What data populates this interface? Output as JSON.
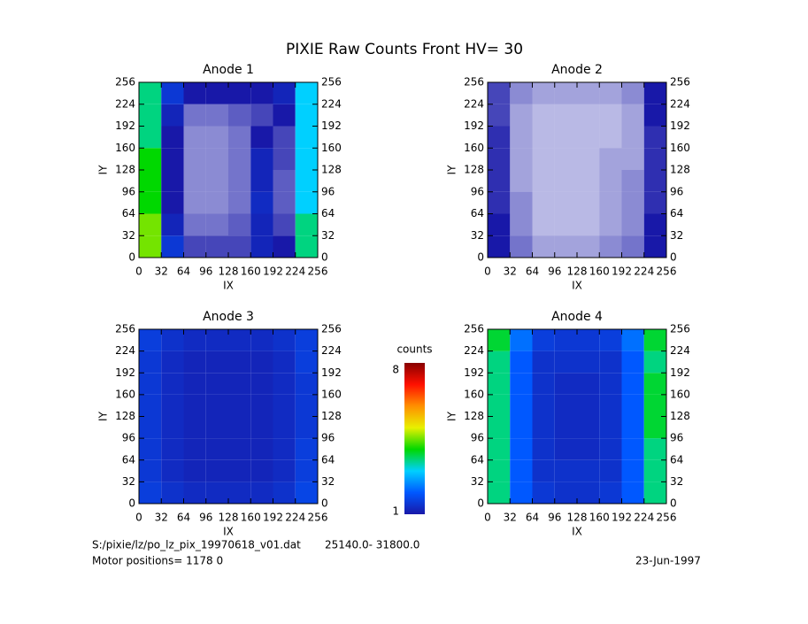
{
  "title": "PIXIE Raw Counts Front HV= 30",
  "footer": {
    "file": "S:/pixie/lz/po_lz_pix_19970618_v01.dat",
    "range": "25140.0- 31800.0",
    "motor": "Motor positions= 1178 0",
    "date": "23-Jun-1997"
  },
  "colorbar": {
    "label": "counts",
    "zlim": [
      1,
      8
    ],
    "ticks": [
      1,
      8
    ],
    "colorscale": [
      "#1818a8",
      "#0058ff",
      "#00d0ff",
      "#00d800",
      "#e8f000",
      "#ff9000",
      "#ff1000",
      "#880000"
    ]
  },
  "chart_data": [
    {
      "type": "heatmap",
      "title": "Anode 1",
      "xlabel": "IX",
      "ylabel": "IY",
      "xlim": [
        0,
        256
      ],
      "ylim": [
        0,
        256
      ],
      "xticks": [
        0,
        32,
        64,
        96,
        128,
        160,
        192,
        224,
        256
      ],
      "yticks": [
        0,
        32,
        64,
        96,
        128,
        160,
        192,
        224,
        256
      ],
      "z": [
        [
          4.5,
          1.5,
          0.8,
          0.8,
          0.8,
          1.2,
          1.0,
          3.5
        ],
        [
          4.5,
          1.2,
          0.6,
          0.6,
          0.7,
          1.2,
          0.8,
          3.5
        ],
        [
          4.0,
          1.0,
          0.5,
          0.5,
          0.6,
          1.3,
          0.7,
          3.0
        ],
        [
          4.0,
          1.0,
          0.5,
          0.5,
          0.6,
          1.2,
          0.7,
          3.0
        ],
        [
          4.0,
          1.0,
          0.5,
          0.5,
          0.6,
          1.2,
          0.8,
          3.0
        ],
        [
          3.5,
          1.0,
          0.5,
          0.5,
          0.6,
          1.0,
          0.8,
          3.0
        ],
        [
          3.5,
          1.2,
          0.6,
          0.6,
          0.7,
          0.8,
          1.0,
          3.0
        ],
        [
          3.5,
          1.5,
          1.0,
          1.0,
          1.0,
          1.0,
          1.2,
          3.0
        ]
      ]
    },
    {
      "type": "heatmap",
      "title": "Anode 2",
      "xlabel": "IX",
      "ylabel": "IY",
      "xlim": [
        0,
        256
      ],
      "ylim": [
        0,
        256
      ],
      "xticks": [
        0,
        32,
        64,
        96,
        128,
        160,
        192,
        224,
        256
      ],
      "yticks": [
        0,
        32,
        64,
        96,
        128,
        160,
        192,
        224,
        256
      ],
      "z": [
        [
          1.0,
          0.6,
          0.4,
          0.4,
          0.4,
          0.5,
          0.6,
          1.0
        ],
        [
          1.0,
          0.5,
          0.3,
          0.3,
          0.3,
          0.4,
          0.5,
          1.0
        ],
        [
          0.9,
          0.5,
          0.3,
          0.3,
          0.3,
          0.4,
          0.5,
          0.9
        ],
        [
          0.9,
          0.4,
          0.3,
          0.3,
          0.3,
          0.4,
          0.5,
          0.9
        ],
        [
          0.9,
          0.4,
          0.3,
          0.3,
          0.3,
          0.4,
          0.4,
          0.9
        ],
        [
          0.9,
          0.4,
          0.3,
          0.3,
          0.3,
          0.3,
          0.4,
          0.9
        ],
        [
          0.8,
          0.4,
          0.3,
          0.3,
          0.3,
          0.3,
          0.4,
          1.0
        ],
        [
          0.8,
          0.5,
          0.4,
          0.4,
          0.4,
          0.4,
          0.5,
          1.0
        ]
      ]
    },
    {
      "type": "heatmap",
      "title": "Anode 3",
      "xlabel": "IX",
      "ylabel": "IY",
      "xlim": [
        0,
        256
      ],
      "ylim": [
        0,
        256
      ],
      "xticks": [
        0,
        32,
        64,
        96,
        128,
        160,
        192,
        224,
        256
      ],
      "yticks": [
        0,
        32,
        64,
        96,
        128,
        160,
        192,
        224,
        256
      ],
      "z": [
        [
          1.6,
          1.4,
          1.3,
          1.3,
          1.3,
          1.3,
          1.4,
          1.7
        ],
        [
          1.5,
          1.3,
          1.2,
          1.2,
          1.2,
          1.2,
          1.3,
          1.6
        ],
        [
          1.5,
          1.3,
          1.2,
          1.2,
          1.2,
          1.2,
          1.3,
          1.6
        ],
        [
          1.5,
          1.3,
          1.2,
          1.2,
          1.2,
          1.2,
          1.3,
          1.5
        ],
        [
          1.5,
          1.3,
          1.2,
          1.2,
          1.2,
          1.2,
          1.3,
          1.5
        ],
        [
          1.5,
          1.3,
          1.2,
          1.2,
          1.2,
          1.2,
          1.3,
          1.5
        ],
        [
          1.5,
          1.3,
          1.2,
          1.2,
          1.2,
          1.2,
          1.3,
          1.6
        ],
        [
          1.6,
          1.4,
          1.3,
          1.3,
          1.3,
          1.3,
          1.4,
          1.6
        ]
      ]
    },
    {
      "type": "heatmap",
      "title": "Anode 4",
      "xlabel": "IX",
      "ylabel": "IY",
      "xlim": [
        0,
        256
      ],
      "ylim": [
        0,
        256
      ],
      "xticks": [
        0,
        32,
        64,
        96,
        128,
        160,
        192,
        224,
        256
      ],
      "yticks": [
        0,
        32,
        64,
        96,
        128,
        160,
        192,
        224,
        256
      ],
      "z": [
        [
          3.5,
          2.0,
          1.5,
          1.4,
          1.4,
          1.5,
          2.0,
          3.5
        ],
        [
          3.5,
          2.0,
          1.4,
          1.4,
          1.4,
          1.4,
          2.0,
          3.5
        ],
        [
          3.5,
          2.0,
          1.4,
          1.3,
          1.3,
          1.4,
          2.0,
          3.5
        ],
        [
          3.5,
          2.0,
          1.4,
          1.3,
          1.3,
          1.4,
          2.0,
          3.8
        ],
        [
          3.5,
          2.0,
          1.4,
          1.3,
          1.3,
          1.4,
          2.0,
          3.8
        ],
        [
          3.5,
          2.0,
          1.4,
          1.3,
          1.3,
          1.4,
          2.0,
          3.8
        ],
        [
          3.5,
          2.0,
          1.4,
          1.4,
          1.4,
          1.4,
          2.0,
          3.5
        ],
        [
          3.8,
          2.2,
          1.6,
          1.5,
          1.5,
          1.6,
          2.2,
          3.8
        ]
      ]
    }
  ]
}
